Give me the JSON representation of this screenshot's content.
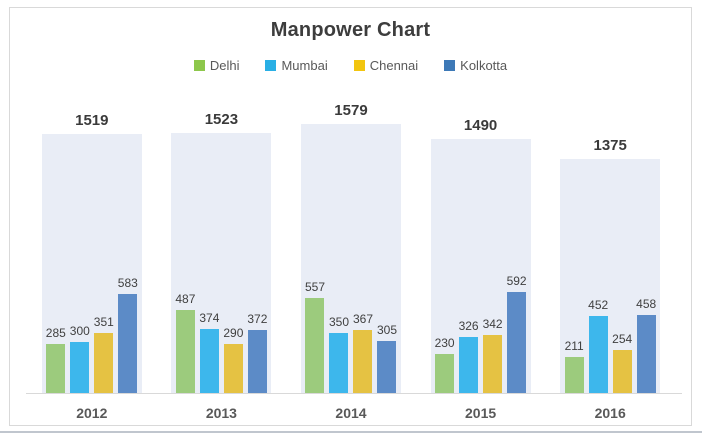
{
  "chart_data": {
    "type": "bar",
    "title": "Manpower Chart",
    "categories": [
      "2012",
      "2013",
      "2014",
      "2015",
      "2016"
    ],
    "series": [
      {
        "name": "Delhi",
        "color": "#9CCB7D",
        "legend_color": "#8DC74B",
        "values": [
          285,
          487,
          557,
          230,
          211
        ]
      },
      {
        "name": "Mumbai",
        "color": "#3DB7EC",
        "legend_color": "#29AFE5",
        "values": [
          300,
          374,
          350,
          326,
          452
        ]
      },
      {
        "name": "Chennai",
        "color": "#E5C243",
        "legend_color": "#F2C50F",
        "values": [
          351,
          290,
          367,
          342,
          254
        ]
      },
      {
        "name": "Kolkotta",
        "color": "#5C8BC7",
        "legend_color": "#3D79B7",
        "values": [
          583,
          372,
          305,
          592,
          458
        ]
      }
    ],
    "totals": [
      1519,
      1523,
      1579,
      1490,
      1375
    ],
    "total_column_color": "#E9EDF6",
    "legend_position": "top",
    "gridlines": false,
    "axis_visible": false,
    "ylim": [
      0,
      1650
    ],
    "xlabel": "",
    "ylabel": ""
  },
  "colors": {
    "frame_border": "#D9D9D9",
    "baseline": "#D9D9D9",
    "title_text": "#3D3D3D",
    "year_label_text": "#595959",
    "value_label_text": "#404040",
    "total_label_text": "#3A3A3A",
    "legend_text": "#595959",
    "bottom_divider": "#C0C6CE"
  }
}
